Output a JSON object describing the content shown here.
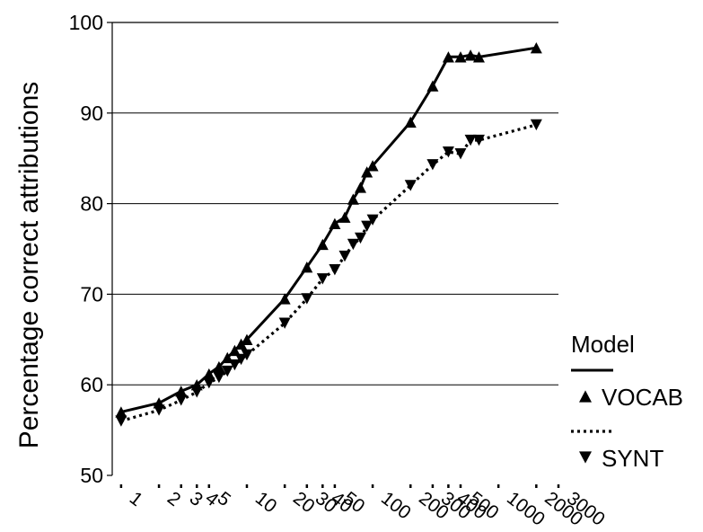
{
  "chart_data": {
    "type": "line",
    "title": "",
    "xlabel": "",
    "ylabel": "Percentage correct attributions",
    "x_scale": "log",
    "xlim": [
      0.85,
      3000
    ],
    "ylim": [
      50,
      100
    ],
    "y_ticks": [
      50,
      60,
      70,
      80,
      90,
      100
    ],
    "gridlines": "horizontal",
    "x_tick_labels": [
      {
        "value": 1,
        "label": "1"
      },
      {
        "value": 2,
        "label": "2"
      },
      {
        "value": 3,
        "label": "3"
      },
      {
        "value": 4,
        "label": "4"
      },
      {
        "value": 5,
        "label": "5"
      },
      {
        "value": 10,
        "label": "10"
      },
      {
        "value": 20,
        "label": "20"
      },
      {
        "value": 30,
        "label": "30"
      },
      {
        "value": 40,
        "label": "40"
      },
      {
        "value": 50,
        "label": "50"
      },
      {
        "value": 100,
        "label": "100"
      },
      {
        "value": 200,
        "label": "200"
      },
      {
        "value": 300,
        "label": "300"
      },
      {
        "value": 400,
        "label": "400"
      },
      {
        "value": 500,
        "label": "500"
      },
      {
        "value": 1000,
        "label": "1000"
      },
      {
        "value": 2000,
        "label": "2000"
      },
      {
        "value": 3000,
        "label": "3000"
      }
    ],
    "legend": {
      "title": "Model",
      "placement": "right"
    },
    "series": [
      {
        "name": "VOCAB",
        "marker": "triangle-up",
        "line_style": "solid",
        "points": [
          [
            1,
            57.0
          ],
          [
            2,
            58.0
          ],
          [
            3,
            59.3
          ],
          [
            4,
            60.0
          ],
          [
            5,
            61.2
          ],
          [
            6,
            62.0
          ],
          [
            7,
            63.0
          ],
          [
            8,
            63.8
          ],
          [
            9,
            64.5
          ],
          [
            10,
            65.0
          ],
          [
            20,
            69.5
          ],
          [
            30,
            73.0
          ],
          [
            40,
            75.5
          ],
          [
            50,
            77.8
          ],
          [
            60,
            78.5
          ],
          [
            70,
            80.5
          ],
          [
            80,
            81.8
          ],
          [
            90,
            83.5
          ],
          [
            100,
            84.2
          ],
          [
            200,
            89.0
          ],
          [
            300,
            93.0
          ],
          [
            400,
            96.2
          ],
          [
            500,
            96.2
          ],
          [
            600,
            96.4
          ],
          [
            700,
            96.2
          ],
          [
            2000,
            97.2
          ]
        ]
      },
      {
        "name": "SYNT",
        "marker": "triangle-down",
        "line_style": "dotted",
        "points": [
          [
            1,
            56.0
          ],
          [
            2,
            57.2
          ],
          [
            3,
            58.3
          ],
          [
            4,
            59.2
          ],
          [
            5,
            60.2
          ],
          [
            6,
            60.8
          ],
          [
            7,
            61.5
          ],
          [
            8,
            62.2
          ],
          [
            9,
            62.8
          ],
          [
            10,
            63.3
          ],
          [
            20,
            66.8
          ],
          [
            30,
            69.5
          ],
          [
            40,
            71.7
          ],
          [
            50,
            72.7
          ],
          [
            60,
            74.2
          ],
          [
            70,
            75.5
          ],
          [
            80,
            76.2
          ],
          [
            90,
            77.5
          ],
          [
            100,
            78.2
          ],
          [
            200,
            82.0
          ],
          [
            300,
            84.3
          ],
          [
            400,
            85.7
          ],
          [
            500,
            85.5
          ],
          [
            600,
            87.0
          ],
          [
            700,
            87.0
          ],
          [
            2000,
            88.7
          ]
        ]
      }
    ]
  }
}
